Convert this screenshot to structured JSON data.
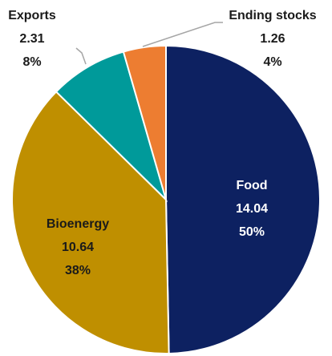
{
  "chart_data": {
    "type": "pie",
    "categories": [
      "Food",
      "Bioenergy",
      "Exports",
      "Ending stocks"
    ],
    "values": [
      14.04,
      10.64,
      2.31,
      1.26
    ],
    "percent_labels": [
      "50%",
      "38%",
      "8%",
      "4%"
    ],
    "colors": [
      "#0d2161",
      "#bf8f00",
      "#009a9a",
      "#ed7d31"
    ]
  }
}
